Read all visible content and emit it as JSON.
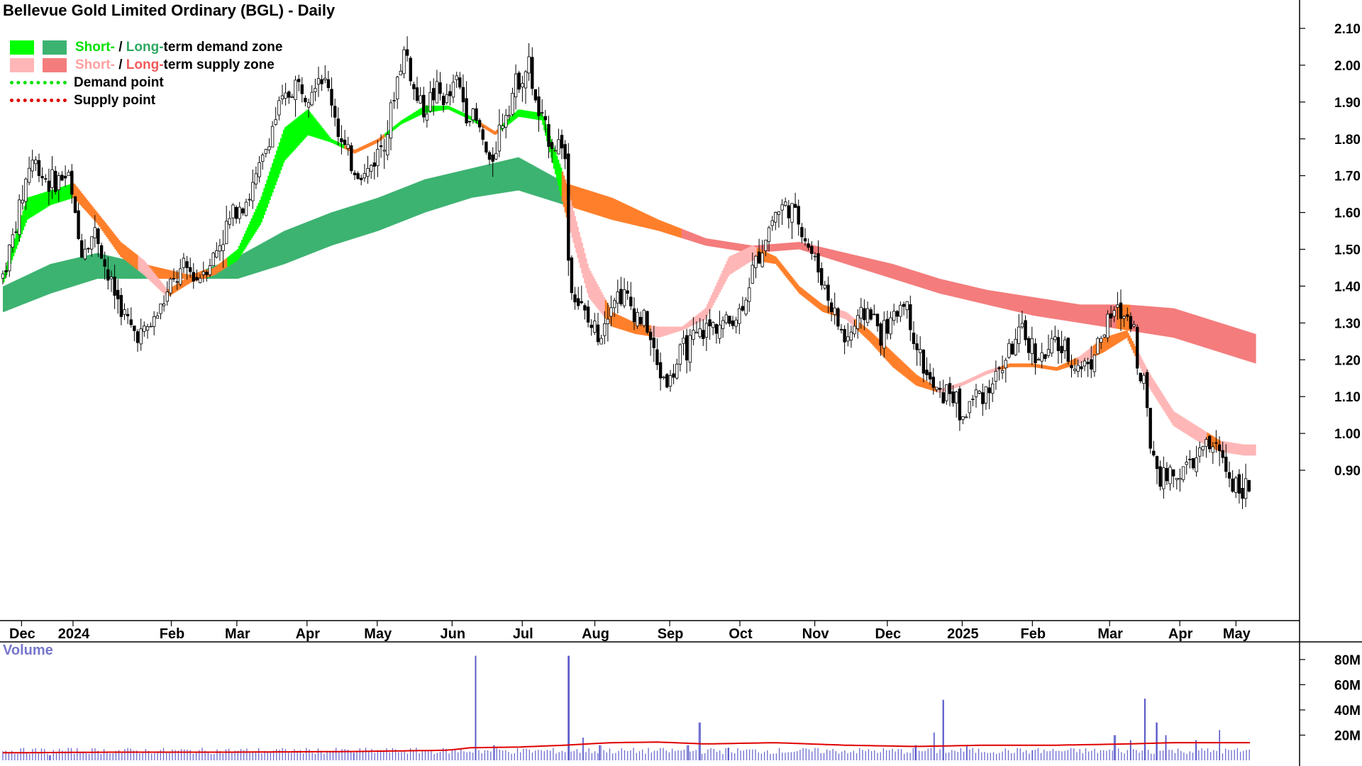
{
  "chart_data": [
    {
      "type": "candlestick",
      "title": "Bellevue Gold Limited Ordinary (BGL) - Daily",
      "legend": {
        "placement": "top-left",
        "zone_entries": [
          {
            "short": "Short-",
            "sep": " / ",
            "long": "Long-",
            "rest": "term demand zone",
            "short_color": "#00ff00",
            "long_color": "#3cb371"
          },
          {
            "short": "Short-",
            "sep": " / ",
            "long": "Long-",
            "rest": "term supply zone",
            "short_color": "#ffb6b6",
            "long_color": "#f47c7c"
          }
        ],
        "point_entries": [
          {
            "label": "Demand point",
            "color": "#00e000"
          },
          {
            "label": "Supply point",
            "color": "#e00000"
          }
        ]
      },
      "y_axis": {
        "position": "right",
        "range": [
          0.8,
          2.15
        ],
        "ticks": [
          0.9,
          1.0,
          1.1,
          1.2,
          1.3,
          1.4,
          1.5,
          1.6,
          1.7,
          1.8,
          1.9,
          2.0,
          2.1
        ],
        "tick_labels": [
          "0.90",
          "1.00",
          "1.10",
          "1.20",
          "1.30",
          "1.40",
          "1.50",
          "1.60",
          "1.70",
          "1.80",
          "1.90",
          "2.00",
          "2.10"
        ]
      },
      "x_axis": {
        "tick_labels": [
          "Dec",
          "2024",
          "Feb",
          "Mar",
          "Apr",
          "May",
          "Jun",
          "Jul",
          "Aug",
          "Sep",
          "Oct",
          "Nov",
          "Dec",
          "2025",
          "Feb",
          "Mar",
          "Apr",
          "May"
        ],
        "tick_positions": [
          0.08,
          0.3,
          0.72,
          1.0,
          1.3,
          1.6,
          1.92,
          2.22,
          2.53,
          2.85,
          3.15,
          3.47,
          3.78,
          4.1,
          4.4,
          4.73,
          5.03,
          5.27
        ]
      },
      "close_path": [
        [
          0.0,
          1.43
        ],
        [
          0.05,
          1.55
        ],
        [
          0.12,
          1.75
        ],
        [
          0.2,
          1.68
        ],
        [
          0.28,
          1.7
        ],
        [
          0.33,
          1.5
        ],
        [
          0.4,
          1.55
        ],
        [
          0.45,
          1.42
        ],
        [
          0.5,
          1.35
        ],
        [
          0.55,
          1.28
        ],
        [
          0.6,
          1.27
        ],
        [
          0.65,
          1.31
        ],
        [
          0.72,
          1.4
        ],
        [
          0.78,
          1.45
        ],
        [
          0.83,
          1.42
        ],
        [
          0.86,
          1.45
        ],
        [
          0.9,
          1.48
        ],
        [
          0.95,
          1.55
        ],
        [
          1.0,
          1.62
        ],
        [
          1.05,
          1.64
        ],
        [
          1.1,
          1.72
        ],
        [
          1.15,
          1.83
        ],
        [
          1.18,
          1.88
        ],
        [
          1.25,
          1.95
        ],
        [
          1.3,
          1.93
        ],
        [
          1.35,
          1.98
        ],
        [
          1.4,
          1.92
        ],
        [
          1.45,
          1.78
        ],
        [
          1.5,
          1.72
        ],
        [
          1.55,
          1.7
        ],
        [
          1.6,
          1.76
        ],
        [
          1.65,
          1.84
        ],
        [
          1.68,
          1.95
        ],
        [
          1.72,
          2.05
        ],
        [
          1.76,
          1.92
        ],
        [
          1.8,
          1.88
        ],
        [
          1.85,
          1.93
        ],
        [
          1.9,
          1.9
        ],
        [
          1.94,
          1.96
        ],
        [
          1.98,
          1.88
        ],
        [
          2.02,
          1.85
        ],
        [
          2.05,
          1.8
        ],
        [
          2.08,
          1.72
        ],
        [
          2.12,
          1.82
        ],
        [
          2.15,
          1.88
        ],
        [
          2.2,
          1.96
        ],
        [
          2.25,
          2.0
        ],
        [
          2.28,
          1.88
        ],
        [
          2.32,
          1.82
        ],
        [
          2.36,
          1.78
        ],
        [
          2.4,
          1.8
        ],
        [
          2.42,
          1.42
        ],
        [
          2.45,
          1.37
        ],
        [
          2.5,
          1.3
        ],
        [
          2.55,
          1.27
        ],
        [
          2.6,
          1.37
        ],
        [
          2.65,
          1.38
        ],
        [
          2.7,
          1.33
        ],
        [
          2.75,
          1.3
        ],
        [
          2.8,
          1.17
        ],
        [
          2.85,
          1.14
        ],
        [
          2.9,
          1.22
        ],
        [
          2.95,
          1.25
        ],
        [
          3.0,
          1.28
        ],
        [
          3.05,
          1.3
        ],
        [
          3.1,
          1.3
        ],
        [
          3.15,
          1.33
        ],
        [
          3.2,
          1.43
        ],
        [
          3.25,
          1.52
        ],
        [
          3.3,
          1.6
        ],
        [
          3.35,
          1.62
        ],
        [
          3.4,
          1.58
        ],
        [
          3.45,
          1.5
        ],
        [
          3.5,
          1.42
        ],
        [
          3.55,
          1.33
        ],
        [
          3.6,
          1.25
        ],
        [
          3.65,
          1.3
        ],
        [
          3.7,
          1.34
        ],
        [
          3.75,
          1.27
        ],
        [
          3.8,
          1.3
        ],
        [
          3.85,
          1.37
        ],
        [
          3.9,
          1.25
        ],
        [
          3.95,
          1.15
        ],
        [
          4.0,
          1.1
        ],
        [
          4.05,
          1.12
        ],
        [
          4.1,
          1.04
        ],
        [
          4.15,
          1.1
        ],
        [
          4.2,
          1.12
        ],
        [
          4.25,
          1.16
        ],
        [
          4.3,
          1.22
        ],
        [
          4.35,
          1.27
        ],
        [
          4.4,
          1.23
        ],
        [
          4.45,
          1.2
        ],
        [
          4.5,
          1.25
        ],
        [
          4.55,
          1.21
        ],
        [
          4.6,
          1.18
        ],
        [
          4.65,
          1.2
        ],
        [
          4.7,
          1.27
        ],
        [
          4.75,
          1.33
        ],
        [
          4.8,
          1.32
        ],
        [
          4.83,
          1.31
        ],
        [
          4.86,
          1.13
        ],
        [
          4.88,
          1.15
        ],
        [
          4.9,
          0.98
        ],
        [
          4.95,
          0.88
        ],
        [
          5.0,
          0.89
        ],
        [
          5.05,
          0.9
        ],
        [
          5.1,
          0.93
        ],
        [
          5.15,
          0.97
        ],
        [
          5.2,
          0.95
        ],
        [
          5.25,
          0.87
        ],
        [
          5.3,
          0.86
        ],
        [
          5.33,
          0.84
        ]
      ],
      "short_term_band": {
        "x": [
          0.0,
          0.1,
          0.2,
          0.3,
          0.4,
          0.5,
          0.6,
          0.7,
          0.8,
          0.9,
          1.0,
          1.1,
          1.2,
          1.3,
          1.4,
          1.5,
          1.6,
          1.7,
          1.8,
          1.9,
          2.0,
          2.1,
          2.2,
          2.3,
          2.4,
          2.5,
          2.6,
          2.7,
          2.8,
          2.9,
          3.0,
          3.1,
          3.2,
          3.3,
          3.4,
          3.5,
          3.6,
          3.7,
          3.8,
          3.9,
          4.0,
          4.1,
          4.2,
          4.3,
          4.4,
          4.5,
          4.6,
          4.7,
          4.8,
          4.9,
          5.0,
          5.1,
          5.2,
          5.3
        ],
        "upper": [
          1.43,
          1.64,
          1.66,
          1.68,
          1.6,
          1.52,
          1.47,
          1.39,
          1.43,
          1.45,
          1.5,
          1.64,
          1.83,
          1.88,
          1.8,
          1.77,
          1.8,
          1.85,
          1.89,
          1.89,
          1.86,
          1.82,
          1.88,
          1.87,
          1.69,
          1.45,
          1.33,
          1.3,
          1.29,
          1.29,
          1.34,
          1.48,
          1.51,
          1.48,
          1.4,
          1.35,
          1.33,
          1.28,
          1.22,
          1.16,
          1.12,
          1.14,
          1.17,
          1.19,
          1.19,
          1.18,
          1.21,
          1.26,
          1.28,
          1.16,
          1.06,
          1.02,
          0.98,
          0.97
        ],
        "lower": [
          1.41,
          1.58,
          1.62,
          1.64,
          1.57,
          1.48,
          1.43,
          1.37,
          1.41,
          1.43,
          1.47,
          1.57,
          1.74,
          1.81,
          1.79,
          1.76,
          1.79,
          1.84,
          1.87,
          1.88,
          1.85,
          1.81,
          1.86,
          1.85,
          1.6,
          1.37,
          1.29,
          1.27,
          1.26,
          1.28,
          1.31,
          1.43,
          1.47,
          1.46,
          1.38,
          1.33,
          1.31,
          1.25,
          1.18,
          1.13,
          1.11,
          1.13,
          1.16,
          1.18,
          1.18,
          1.17,
          1.19,
          1.22,
          1.26,
          1.12,
          1.02,
          0.98,
          0.95,
          0.94
        ]
      },
      "long_term_band": {
        "x": [
          0.0,
          0.2,
          0.4,
          0.6,
          0.8,
          1.0,
          1.2,
          1.4,
          1.6,
          1.8,
          2.0,
          2.2,
          2.4,
          2.6,
          2.8,
          3.0,
          3.2,
          3.4,
          3.6,
          3.8,
          4.0,
          4.2,
          4.4,
          4.6,
          4.8,
          5.0,
          5.2,
          5.35
        ],
        "upper": [
          1.4,
          1.46,
          1.49,
          1.46,
          1.43,
          1.48,
          1.55,
          1.6,
          1.64,
          1.69,
          1.72,
          1.75,
          1.68,
          1.64,
          1.58,
          1.53,
          1.51,
          1.52,
          1.49,
          1.46,
          1.42,
          1.39,
          1.37,
          1.35,
          1.35,
          1.34,
          1.3,
          1.27
        ],
        "lower": [
          1.33,
          1.38,
          1.42,
          1.42,
          1.42,
          1.42,
          1.46,
          1.51,
          1.55,
          1.6,
          1.64,
          1.66,
          1.62,
          1.58,
          1.55,
          1.51,
          1.49,
          1.5,
          1.46,
          1.42,
          1.38,
          1.35,
          1.32,
          1.3,
          1.28,
          1.26,
          1.22,
          1.19
        ]
      }
    },
    {
      "type": "bar",
      "title": "Volume",
      "y_axis": {
        "position": "right",
        "range": [
          0,
          80
        ],
        "ticks": [
          20,
          40,
          60,
          80
        ],
        "tick_labels": [
          "20M",
          "40M",
          "60M",
          "80M"
        ]
      },
      "spikes": [
        [
          0.2,
          4
        ],
        [
          1.5,
          6
        ],
        [
          2.02,
          83
        ],
        [
          2.1,
          12
        ],
        [
          2.42,
          83
        ],
        [
          2.48,
          18
        ],
        [
          2.55,
          12
        ],
        [
          2.93,
          12
        ],
        [
          2.98,
          30
        ],
        [
          3.1,
          10
        ],
        [
          3.9,
          12
        ],
        [
          3.98,
          22
        ],
        [
          4.02,
          48
        ],
        [
          4.12,
          12
        ],
        [
          4.4,
          8
        ],
        [
          4.75,
          20
        ],
        [
          4.82,
          16
        ],
        [
          4.88,
          49
        ],
        [
          4.93,
          30
        ],
        [
          4.97,
          20
        ],
        [
          5.1,
          16
        ],
        [
          5.2,
          24
        ]
      ],
      "baseline": 5,
      "moving_average": [
        [
          0.0,
          6
        ],
        [
          0.5,
          6.5
        ],
        [
          1.0,
          6.5
        ],
        [
          1.5,
          7
        ],
        [
          1.9,
          8
        ],
        [
          2.0,
          10
        ],
        [
          2.2,
          10.5
        ],
        [
          2.4,
          12
        ],
        [
          2.6,
          14
        ],
        [
          2.8,
          14.5
        ],
        [
          3.0,
          13
        ],
        [
          3.3,
          14
        ],
        [
          3.6,
          12
        ],
        [
          3.9,
          11
        ],
        [
          4.2,
          12
        ],
        [
          4.5,
          12
        ],
        [
          4.8,
          13
        ],
        [
          5.0,
          14
        ],
        [
          5.2,
          14
        ],
        [
          5.33,
          14
        ]
      ]
    }
  ]
}
